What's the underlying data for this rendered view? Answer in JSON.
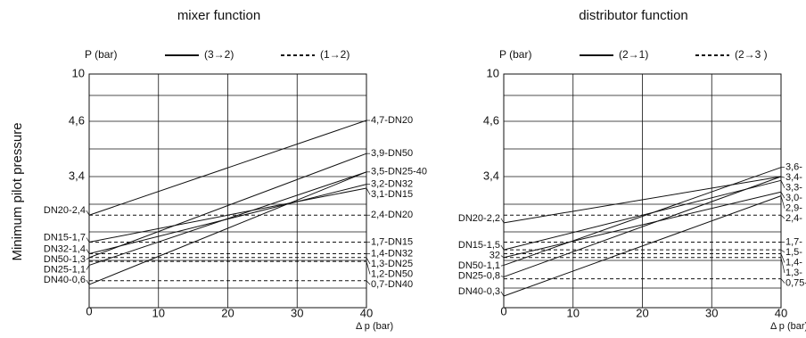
{
  "chart_data": [
    {
      "type": "line",
      "title": "mixer function",
      "ylabel": "Minimum pilot pressure",
      "yunit": "P (bar)",
      "xlabel": "Δ p (bar)",
      "legend": [
        {
          "label": "(3→2)",
          "dash": false
        },
        {
          "label": "(1→2)",
          "dash": true
        }
      ],
      "xlim": [
        0,
        40
      ],
      "xticks": [
        0,
        10,
        20,
        30,
        40
      ],
      "ylim": [
        0,
        10
      ],
      "yticks": [
        0,
        {
          "value": 3.4,
          "label": "3,4"
        },
        {
          "value": 4.6,
          "label": "4,6"
        },
        10
      ],
      "color": "#111111",
      "series": [
        {
          "dash": false,
          "x": [
            0,
            40
          ],
          "values": [
            2.4,
            4.7
          ],
          "start_label": "DN20-2,4",
          "end_label": "4,7-DN20"
        },
        {
          "dash": false,
          "x": [
            0,
            40
          ],
          "values": [
            1.3,
            3.9
          ],
          "start_label": "DN50-1,3",
          "end_label": "3,9-DN50"
        },
        {
          "dash": false,
          "x": [
            0,
            40
          ],
          "values": [
            1.1,
            3.5
          ],
          "start_label": "DN25-1,1",
          "end_label": "3,5-DN25-40"
        },
        {
          "dash": false,
          "x": [
            0,
            40
          ],
          "values": [
            0.6,
            3.5
          ],
          "start_label": "DN40-0,6"
        },
        {
          "dash": false,
          "x": [
            0,
            40
          ],
          "values": [
            1.4,
            3.2
          ],
          "start_label": "DN32-1,4",
          "end_label": "3,2-DN32"
        },
        {
          "dash": false,
          "x": [
            0,
            40
          ],
          "values": [
            1.7,
            3.1
          ],
          "start_label": "DN15-1,7",
          "end_label": "3,1-DN15"
        },
        {
          "dash": true,
          "x": [
            0,
            40
          ],
          "values": [
            2.4,
            2.4
          ],
          "end_label": "2,4-DN20"
        },
        {
          "dash": true,
          "x": [
            0,
            40
          ],
          "values": [
            1.7,
            1.7
          ],
          "end_label": "1,7-DN15"
        },
        {
          "dash": true,
          "x": [
            0,
            40
          ],
          "values": [
            1.4,
            1.4
          ],
          "end_label": "1,4-DN32"
        },
        {
          "dash": true,
          "x": [
            0,
            40
          ],
          "values": [
            1.3,
            1.3
          ],
          "end_label": "1,3-DN25"
        },
        {
          "dash": true,
          "x": [
            0,
            40
          ],
          "values": [
            1.2,
            1.2
          ],
          "end_label": "1,2-DN50"
        },
        {
          "dash": true,
          "x": [
            0,
            40
          ],
          "values": [
            0.7,
            0.7
          ],
          "end_label": "0,7-DN40"
        }
      ]
    },
    {
      "type": "line",
      "title": "distributor function",
      "yunit": "P (bar)",
      "xlabel": "Δ p (bar)",
      "legend": [
        {
          "label": "(2→1)",
          "dash": false
        },
        {
          "label": "(2→3 )",
          "dash": true
        }
      ],
      "xlim": [
        0,
        40
      ],
      "xticks": [
        0,
        10,
        20,
        30,
        40
      ],
      "ylim": [
        0,
        10
      ],
      "yticks": [
        0,
        {
          "value": 3.4,
          "label": "3,4"
        },
        {
          "value": 4.6,
          "label": "4,6"
        },
        10
      ],
      "color": "#111111",
      "series": [
        {
          "dash": false,
          "x": [
            0,
            40
          ],
          "values": [
            2.2,
            3.4
          ],
          "start_label": "DN20-2,2",
          "end_label": "3,4-"
        },
        {
          "dash": false,
          "x": [
            0,
            40
          ],
          "values": [
            1.5,
            3.3
          ],
          "start_label": "DN15-1,5",
          "end_label": "3,3-"
        },
        {
          "dash": false,
          "x": [
            0,
            40
          ],
          "values": [
            1.3,
            3.0
          ],
          "start_label": "32",
          "end_label": "3,0-"
        },
        {
          "dash": false,
          "x": [
            0,
            40
          ],
          "values": [
            1.1,
            3.6
          ],
          "start_label": "DN50-1,1",
          "end_label": "3,6-"
        },
        {
          "dash": false,
          "x": [
            0,
            40
          ],
          "values": [
            0.8,
            3.4
          ],
          "start_label": "DN25-0,8"
        },
        {
          "dash": false,
          "x": [
            0,
            40
          ],
          "values": [
            0.3,
            2.9
          ],
          "start_label": "DN40-0,3",
          "end_label": "2,9-"
        },
        {
          "dash": true,
          "x": [
            0,
            40
          ],
          "values": [
            2.4,
            2.4
          ],
          "end_label": "2,4-"
        },
        {
          "dash": true,
          "x": [
            0,
            40
          ],
          "values": [
            1.7,
            1.7
          ],
          "end_label": "1,7-"
        },
        {
          "dash": true,
          "x": [
            0,
            40
          ],
          "values": [
            1.5,
            1.5
          ],
          "end_label": "1,5-"
        },
        {
          "dash": true,
          "x": [
            0,
            40
          ],
          "values": [
            1.4,
            1.4
          ],
          "end_label": "1,4-"
        },
        {
          "dash": true,
          "x": [
            0,
            40
          ],
          "values": [
            1.3,
            1.3
          ],
          "end_label": "1,3-"
        },
        {
          "dash": true,
          "x": [
            0,
            40
          ],
          "values": [
            0.75,
            0.75
          ],
          "end_label": "0,75-"
        }
      ]
    }
  ]
}
